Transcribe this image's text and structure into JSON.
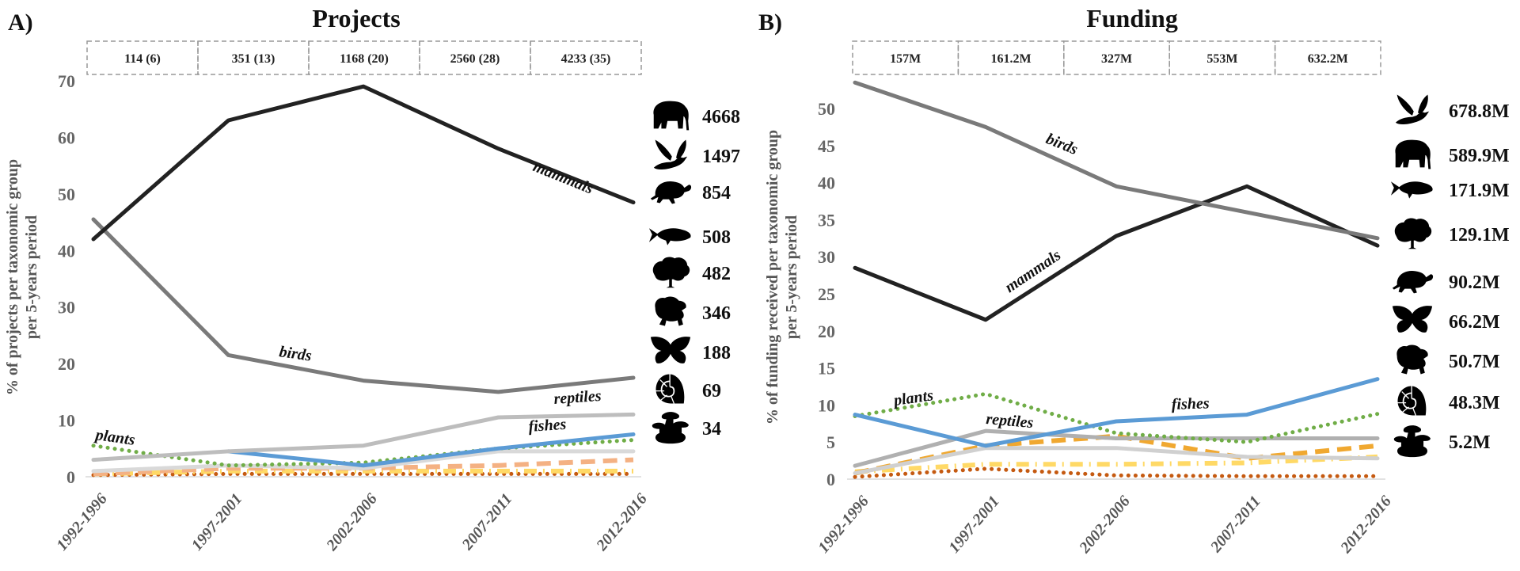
{
  "chart_data": [
    {
      "type": "line",
      "panel": "A)",
      "title": "Projects",
      "ylabel": "% of projects per taxonomic group per 5-years period",
      "xlabel": "",
      "ylim": [
        0,
        70
      ],
      "yticks": [
        0,
        10,
        20,
        30,
        40,
        50,
        60,
        70
      ],
      "categories": [
        "1992-1996",
        "1997-2001",
        "2002-2006",
        "2007-2011",
        "2012-2016"
      ],
      "period_totals": [
        "114 (6)",
        "351 (13)",
        "1168 (20)",
        "2560 (28)",
        "4233 (35)"
      ],
      "series": [
        {
          "name": "mammals",
          "label": "mammals",
          "color": "#222222",
          "style": "solid",
          "values": [
            42,
            63,
            69,
            58,
            48.5
          ]
        },
        {
          "name": "birds",
          "label": "birds",
          "color": "#7a7a7a",
          "style": "solid",
          "values": [
            45.5,
            21.5,
            17,
            15,
            17.5
          ]
        },
        {
          "name": "reptiles",
          "label": "reptiles",
          "color": "#bdbdbd",
          "style": "solid",
          "values": [
            3,
            4.5,
            5.5,
            10.5,
            11
          ]
        },
        {
          "name": "fishes",
          "label": "fishes",
          "color": "#5b9bd5",
          "style": "solid",
          "values": [
            null,
            4.5,
            2,
            5,
            7.5
          ]
        },
        {
          "name": "plants",
          "label": "plants",
          "color": "#70ad47",
          "style": "dotted",
          "values": [
            5.5,
            2,
            2.5,
            5,
            6.5
          ]
        },
        {
          "name": "amphibians",
          "label": "",
          "color": "#d9d9d9",
          "style": "solid",
          "values": [
            1,
            2,
            1.5,
            4.5,
            4.5
          ]
        },
        {
          "name": "insects",
          "label": "",
          "color": "#f4b183",
          "style": "dashed",
          "values": [
            0.5,
            1.5,
            1.5,
            2,
            3
          ]
        },
        {
          "name": "fungi",
          "label": "",
          "color": "#ffd966",
          "style": "dashdot",
          "values": [
            0.5,
            1,
            1,
            1,
            1
          ]
        },
        {
          "name": "mollusks",
          "label": "",
          "color": "#c55a11",
          "style": "dotted",
          "values": [
            0.3,
            0.5,
            0.5,
            0.5,
            0.5
          ]
        }
      ],
      "icon_legend": [
        {
          "icon": "elephant-icon",
          "value": "4668"
        },
        {
          "icon": "bird-icon",
          "value": "1497"
        },
        {
          "icon": "turtle-icon",
          "value": "854"
        },
        {
          "icon": "fish-icon",
          "value": "508"
        },
        {
          "icon": "tree-icon",
          "value": "482"
        },
        {
          "icon": "frog-icon",
          "value": "346"
        },
        {
          "icon": "butterfly-icon",
          "value": "188"
        },
        {
          "icon": "nautilus-shell-icon",
          "value": "69"
        },
        {
          "icon": "mushroom-icon",
          "value": "34"
        }
      ]
    },
    {
      "type": "line",
      "panel": "B)",
      "title": "Funding",
      "ylabel": "% of funding received per taxonomic group per 5-years period",
      "xlabel": "",
      "ylim": [
        0,
        55
      ],
      "yticks": [
        0,
        5,
        10,
        15,
        20,
        25,
        30,
        35,
        40,
        45,
        50
      ],
      "categories": [
        "1992-1996",
        "1997-2001",
        "2002-2006",
        "2007-2011",
        "2012-2016"
      ],
      "period_totals": [
        "157M",
        "161.2M",
        "327M",
        "553M",
        "632.2M"
      ],
      "series": [
        {
          "name": "birds",
          "label": "birds",
          "color": "#7a7a7a",
          "style": "solid",
          "values": [
            53.5,
            47.5,
            39.5,
            36,
            32.5
          ]
        },
        {
          "name": "mammals",
          "label": "mammals",
          "color": "#222222",
          "style": "solid",
          "values": [
            28.5,
            21.5,
            32.8,
            39.5,
            31.5
          ]
        },
        {
          "name": "fishes",
          "label": "fishes",
          "color": "#5b9bd5",
          "style": "solid",
          "values": [
            8.7,
            4.5,
            7.8,
            8.7,
            13.5
          ]
        },
        {
          "name": "plants",
          "label": "plants",
          "color": "#70ad47",
          "style": "dotted",
          "values": [
            8.5,
            11.5,
            6.2,
            5,
            8.8
          ]
        },
        {
          "name": "reptiles",
          "label": "reptiles",
          "color": "#b0b0b0",
          "style": "solid",
          "values": [
            1.8,
            6.5,
            5.5,
            5.5,
            5.5
          ]
        },
        {
          "name": "amphibians",
          "label": "",
          "color": "#d0d0d0",
          "style": "solid",
          "values": [
            0.8,
            4.2,
            4.2,
            3,
            2.8
          ]
        },
        {
          "name": "insects",
          "label": "",
          "color": "#f0a830",
          "style": "dashed",
          "values": [
            0.8,
            4.5,
            5.8,
            2.8,
            4.5
          ]
        },
        {
          "name": "fungi",
          "label": "",
          "color": "#ffd966",
          "style": "dashdot",
          "values": [
            1,
            2,
            2,
            2.2,
            3
          ]
        },
        {
          "name": "mollusks",
          "label": "",
          "color": "#c55a11",
          "style": "dotted",
          "values": [
            0.3,
            1.4,
            0.5,
            0.4,
            0.4
          ]
        }
      ],
      "icon_legend": [
        {
          "icon": "bird-icon",
          "value": "678.8M"
        },
        {
          "icon": "elephant-icon",
          "value": "589.9M"
        },
        {
          "icon": "fish-icon",
          "value": "171.9M"
        },
        {
          "icon": "tree-icon",
          "value": "129.1M"
        },
        {
          "icon": "turtle-icon",
          "value": "90.2M"
        },
        {
          "icon": "butterfly-icon",
          "value": "66.2M"
        },
        {
          "icon": "frog-icon",
          "value": "50.7M"
        },
        {
          "icon": "nautilus-shell-icon",
          "value": "48.3M"
        },
        {
          "icon": "mushroom-icon",
          "value": "5.2M"
        }
      ]
    }
  ]
}
